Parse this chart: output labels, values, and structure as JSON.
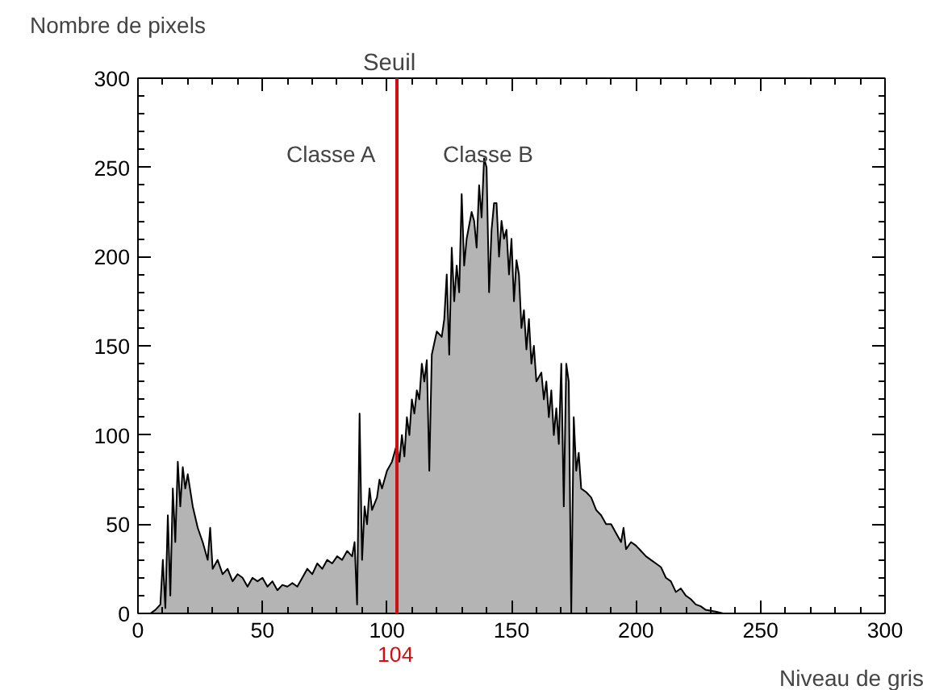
{
  "chart_data": {
    "type": "area",
    "ylabel": "Nombre de pixels",
    "xlabel": "Niveau de gris",
    "xlim": [
      0,
      300
    ],
    "ylim": [
      0,
      300
    ],
    "xticks": [
      0,
      50,
      100,
      150,
      200,
      250,
      300
    ],
    "yticks": [
      0,
      50,
      100,
      150,
      200,
      250,
      300
    ],
    "grid": false,
    "series": [
      {
        "color": "#b4b4b4",
        "x": [
          5,
          7,
          9,
          10,
          11,
          12,
          13,
          14,
          15,
          16,
          17,
          18,
          19,
          20,
          22,
          24,
          26,
          27,
          28,
          29,
          30,
          32,
          34,
          36,
          38,
          40,
          42,
          44,
          46,
          48,
          50,
          52,
          54,
          56,
          58,
          60,
          62,
          64,
          66,
          68,
          70,
          72,
          74,
          76,
          78,
          80,
          82,
          84,
          86,
          87,
          88,
          89,
          90,
          91,
          92,
          93,
          94,
          96,
          97,
          98,
          100,
          102,
          103,
          104,
          105,
          106,
          107,
          108,
          109,
          110,
          111,
          112,
          113,
          114,
          115,
          116,
          117,
          118,
          120,
          122,
          123,
          124,
          125,
          126,
          127,
          128,
          129,
          130,
          131,
          132,
          134,
          135,
          136,
          137,
          138,
          139,
          140,
          141,
          142,
          143,
          144,
          145,
          146,
          147,
          148,
          149,
          150,
          151,
          152,
          153,
          154,
          155,
          156,
          157,
          158,
          159,
          160,
          162,
          163,
          164,
          165,
          166,
          167,
          168,
          169,
          170,
          171,
          172,
          173,
          174,
          175,
          176,
          177,
          178,
          180,
          182,
          184,
          186,
          188,
          190,
          192,
          194,
          195,
          196,
          198,
          200,
          202,
          204,
          206,
          208,
          210,
          212,
          214,
          216,
          218,
          220,
          222,
          224,
          226,
          228,
          232,
          235
        ],
        "values": [
          0,
          2,
          5,
          30,
          3,
          55,
          10,
          70,
          40,
          85,
          60,
          82,
          70,
          78,
          60,
          48,
          40,
          35,
          30,
          48,
          25,
          30,
          22,
          25,
          18,
          22,
          20,
          15,
          20,
          18,
          20,
          15,
          18,
          13,
          16,
          15,
          17,
          15,
          20,
          25,
          22,
          28,
          25,
          30,
          28,
          32,
          30,
          35,
          32,
          40,
          5,
          112,
          30,
          60,
          50,
          70,
          58,
          65,
          75,
          70,
          80,
          85,
          90,
          95,
          85,
          100,
          88,
          110,
          100,
          120,
          112,
          125,
          120,
          140,
          130,
          142,
          80,
          145,
          158,
          155,
          165,
          190,
          145,
          205,
          175,
          195,
          180,
          235,
          195,
          210,
          225,
          220,
          205,
          240,
          222,
          255,
          250,
          180,
          215,
          230,
          230,
          200,
          220,
          210,
          215,
          190,
          210,
          175,
          198,
          190,
          160,
          170,
          148,
          165,
          140,
          150,
          130,
          135,
          120,
          130,
          110,
          125,
          100,
          115,
          95,
          140,
          60,
          140,
          130,
          0,
          110,
          80,
          90,
          70,
          68,
          65,
          58,
          55,
          50,
          50,
          45,
          40,
          48,
          36,
          40,
          38,
          35,
          32,
          30,
          28,
          26,
          20,
          18,
          12,
          14,
          10,
          8,
          5,
          4,
          2,
          1,
          0
        ]
      }
    ],
    "ref_lines": [
      {
        "axis": "x",
        "value": 104,
        "label": "Seuil",
        "color": "#d01010"
      }
    ],
    "annotations": [
      "Classe A",
      "Classe B",
      {
        "text": "104",
        "x": 104,
        "y": 0
      }
    ]
  }
}
